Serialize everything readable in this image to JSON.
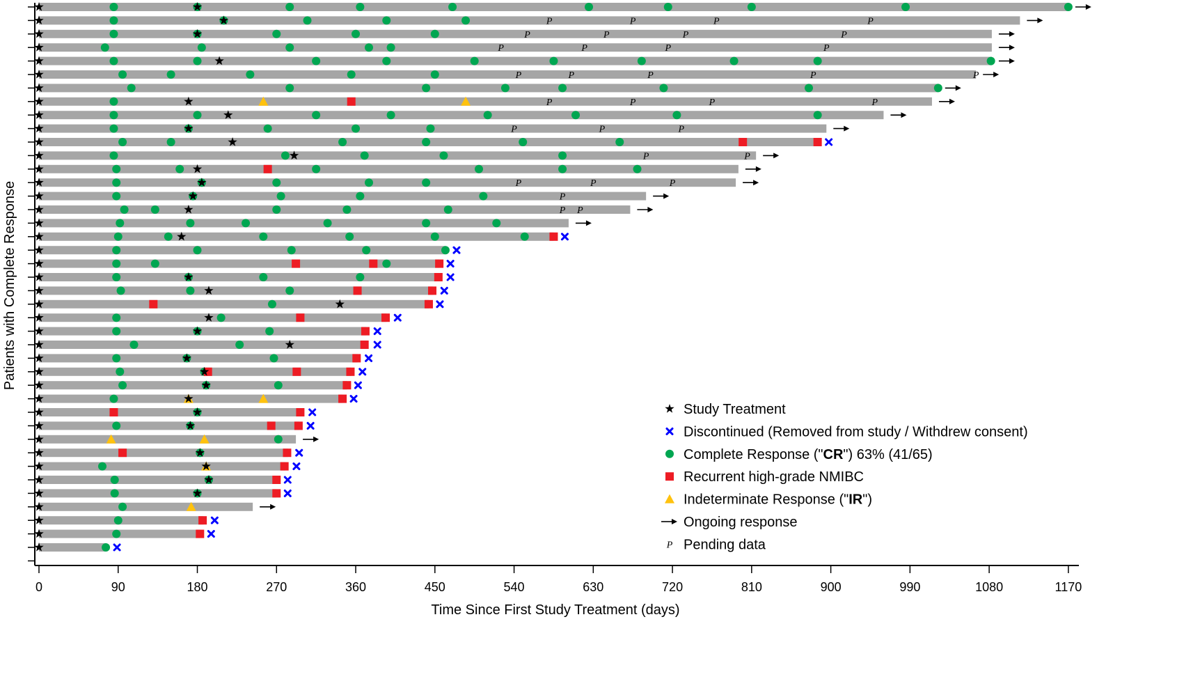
{
  "chart_data": {
    "type": "swimmer",
    "xlabel": "Time Since First Study Treatment (days)",
    "ylabel": "Patients with Complete Response",
    "xlim": [
      0,
      1185
    ],
    "xticks": [
      0,
      90,
      180,
      270,
      360,
      450,
      540,
      630,
      720,
      810,
      900,
      990,
      1080,
      1170
    ],
    "colors": {
      "bar": "#a6a6a6",
      "cr": "#00a651",
      "rec": "#ed1c24",
      "ir": "#ffc20e",
      "disc": "#0000ff",
      "treat": "#000000"
    },
    "legend": [
      {
        "key": "treat",
        "icon": "star-icon",
        "label": "Study Treatment"
      },
      {
        "key": "disc",
        "icon": "x-icon",
        "label": "Discontinued (Removed from study / Withdrew consent)"
      },
      {
        "key": "cr",
        "icon": "circle-icon",
        "label": "Complete Response (\"CR\") 63% (41/65)",
        "pre": "Complete Response (\"",
        "bold": "CR",
        "post": "\") 63% (41/65)"
      },
      {
        "key": "rec",
        "icon": "square-icon",
        "label": "Recurrent high-grade NMIBC"
      },
      {
        "key": "ir",
        "icon": "triangle-icon",
        "label": "Indeterminate Response (\"IR\")",
        "pre": "Indeterminate Response (\"",
        "bold": "IR",
        "post": "\")"
      },
      {
        "key": "arrow",
        "icon": "arrow-icon",
        "label": "Ongoing response"
      },
      {
        "key": "pend",
        "icon": "p-icon",
        "label": "Pending data",
        "symbol": "P"
      }
    ],
    "patients": [
      {
        "end": 1170,
        "cr": [
          85,
          180,
          285,
          365,
          470,
          625,
          715,
          810,
          985,
          1170
        ],
        "rec": [],
        "ir": [],
        "treat": [
          0,
          180
        ],
        "pend": [],
        "arrow": true,
        "disc": false
      },
      {
        "end": 1115,
        "cr": [
          85,
          210,
          305,
          395,
          485
        ],
        "rec": [],
        "ir": [],
        "treat": [
          0,
          210
        ],
        "pend": [
          580,
          675,
          770,
          945
        ],
        "arrow": true,
        "disc": false
      },
      {
        "end": 1083,
        "cr": [
          85,
          180,
          270,
          360,
          450
        ],
        "rec": [],
        "ir": [],
        "treat": [
          0,
          180
        ],
        "pend": [
          555,
          645,
          735,
          915
        ],
        "arrow": true,
        "disc": false
      },
      {
        "end": 1083,
        "cr": [
          75,
          185,
          285,
          375,
          400
        ],
        "rec": [],
        "ir": [],
        "treat": [
          0
        ],
        "pend": [
          525,
          620,
          715,
          895
        ],
        "arrow": true,
        "disc": false
      },
      {
        "end": 1083,
        "cr": [
          85,
          180,
          315,
          395,
          495,
          585,
          685,
          790,
          885,
          1082
        ],
        "rec": [],
        "ir": [],
        "treat": [
          0,
          205
        ],
        "pend": [],
        "arrow": true,
        "disc": false
      },
      {
        "end": 1065,
        "cr": [
          95,
          150,
          240,
          355,
          450
        ],
        "rec": [],
        "ir": [],
        "treat": [
          0
        ],
        "pend": [
          545,
          605,
          695,
          880,
          1065
        ],
        "arrow": true,
        "disc": false
      },
      {
        "end": 1022,
        "cr": [
          105,
          285,
          440,
          530,
          595,
          710,
          875,
          1022
        ],
        "rec": [],
        "ir": [],
        "treat": [
          0
        ],
        "pend": [],
        "arrow": true,
        "disc": false
      },
      {
        "end": 1015,
        "cr": [
          85
        ],
        "rec": [
          355
        ],
        "ir": [
          255,
          485
        ],
        "treat": [
          0,
          170
        ],
        "pend": [
          580,
          675,
          765,
          950
        ],
        "arrow": true,
        "disc": false
      },
      {
        "end": 960,
        "cr": [
          85,
          180,
          315,
          400,
          510,
          610,
          725,
          885
        ],
        "rec": [],
        "ir": [],
        "treat": [
          0,
          215
        ],
        "pend": [],
        "arrow": true,
        "disc": false
      },
      {
        "end": 895,
        "cr": [
          85,
          170,
          260,
          360,
          445
        ],
        "rec": [],
        "ir": [],
        "treat": [
          0,
          170
        ],
        "pend": [
          540,
          640,
          730
        ],
        "arrow": true,
        "disc": false
      },
      {
        "end": 885,
        "cr": [
          95,
          150,
          345,
          440,
          550,
          660
        ],
        "rec": [
          800,
          885
        ],
        "ir": [],
        "treat": [
          0,
          220
        ],
        "pend": [],
        "arrow": false,
        "disc": true
      },
      {
        "end": 815,
        "cr": [
          85,
          280,
          370,
          460,
          595
        ],
        "rec": [],
        "ir": [],
        "treat": [
          0,
          290
        ],
        "pend": [
          690,
          805
        ],
        "arrow": true,
        "disc": false
      },
      {
        "end": 795,
        "cr": [
          88,
          160,
          315,
          500,
          595,
          680
        ],
        "rec": [
          260
        ],
        "ir": [],
        "treat": [
          0,
          180
        ],
        "pend": [],
        "arrow": true,
        "disc": false
      },
      {
        "end": 792,
        "cr": [
          88,
          185,
          270,
          375,
          440
        ],
        "rec": [],
        "ir": [],
        "treat": [
          0,
          185
        ],
        "pend": [
          545,
          630,
          720
        ],
        "arrow": true,
        "disc": false
      },
      {
        "end": 690,
        "cr": [
          88,
          175,
          275,
          365,
          505
        ],
        "rec": [],
        "ir": [],
        "treat": [
          0,
          175
        ],
        "pend": [
          595
        ],
        "arrow": true,
        "disc": false
      },
      {
        "end": 672,
        "cr": [
          97,
          132,
          270,
          350,
          465
        ],
        "rec": [],
        "ir": [],
        "treat": [
          0,
          170
        ],
        "pend": [
          595,
          615
        ],
        "arrow": true,
        "disc": false
      },
      {
        "end": 602,
        "cr": [
          92,
          172,
          235,
          328,
          440,
          520
        ],
        "rec": [],
        "ir": [],
        "treat": [
          0
        ],
        "pend": [],
        "arrow": true,
        "disc": false
      },
      {
        "end": 585,
        "cr": [
          90,
          147,
          255,
          353,
          450,
          552
        ],
        "rec": [
          585
        ],
        "ir": [],
        "treat": [
          0,
          162
        ],
        "pend": [],
        "arrow": false,
        "disc": true
      },
      {
        "end": 462,
        "cr": [
          88,
          180,
          287,
          372,
          462
        ],
        "rec": [],
        "ir": [],
        "treat": [
          0
        ],
        "pend": [],
        "arrow": false,
        "disc": true
      },
      {
        "end": 455,
        "cr": [
          88,
          132,
          395
        ],
        "rec": [
          292,
          380,
          455
        ],
        "ir": [],
        "treat": [
          0
        ],
        "pend": [],
        "arrow": false,
        "disc": true
      },
      {
        "end": 455,
        "cr": [
          88,
          170,
          255,
          365
        ],
        "rec": [
          454
        ],
        "ir": [],
        "treat": [
          0,
          170
        ],
        "pend": [],
        "arrow": false,
        "disc": true
      },
      {
        "end": 448,
        "cr": [
          93,
          172,
          285
        ],
        "rec": [
          362,
          447
        ],
        "ir": [],
        "treat": [
          0,
          193
        ],
        "pend": [],
        "arrow": false,
        "disc": true
      },
      {
        "end": 443,
        "cr": [
          265
        ],
        "rec": [
          130,
          443
        ],
        "ir": [],
        "treat": [
          0,
          342
        ],
        "pend": [],
        "arrow": false,
        "disc": true
      },
      {
        "end": 395,
        "cr": [
          88,
          207
        ],
        "rec": [
          297,
          394
        ],
        "ir": [],
        "treat": [
          0,
          193
        ],
        "pend": [],
        "arrow": false,
        "disc": true
      },
      {
        "end": 372,
        "cr": [
          88,
          180,
          262
        ],
        "rec": [
          371
        ],
        "ir": [],
        "treat": [
          0,
          180
        ],
        "pend": [],
        "arrow": false,
        "disc": true
      },
      {
        "end": 372,
        "cr": [
          108,
          228
        ],
        "rec": [
          370
        ],
        "ir": [],
        "treat": [
          0,
          285
        ],
        "pend": [],
        "arrow": false,
        "disc": true
      },
      {
        "end": 362,
        "cr": [
          88,
          168,
          267
        ],
        "rec": [
          361
        ],
        "ir": [],
        "treat": [
          0,
          168
        ],
        "pend": [],
        "arrow": false,
        "disc": true
      },
      {
        "end": 355,
        "cr": [
          92,
          188
        ],
        "rec": [
          192,
          293,
          354
        ],
        "ir": [],
        "treat": [
          0,
          188
        ],
        "pend": [],
        "arrow": false,
        "disc": true
      },
      {
        "end": 350,
        "cr": [
          95,
          190,
          272
        ],
        "rec": [
          350
        ],
        "ir": [],
        "treat": [
          0,
          190
        ],
        "pend": [],
        "arrow": false,
        "disc": true
      },
      {
        "end": 345,
        "cr": [
          85
        ],
        "rec": [
          345
        ],
        "ir": [
          170,
          255
        ],
        "treat": [
          0,
          170
        ],
        "pend": [],
        "arrow": false,
        "disc": true
      },
      {
        "end": 298,
        "cr": [
          180
        ],
        "rec": [
          85,
          297
        ],
        "ir": [],
        "treat": [
          0,
          180
        ],
        "pend": [],
        "arrow": false,
        "disc": true
      },
      {
        "end": 296,
        "cr": [
          88,
          172
        ],
        "rec": [
          264,
          295
        ],
        "ir": [],
        "treat": [
          0,
          172
        ],
        "pend": [],
        "arrow": false,
        "disc": true
      },
      {
        "end": 292,
        "cr": [
          272
        ],
        "rec": [],
        "ir": [
          82,
          188
        ],
        "treat": [
          0
        ],
        "pend": [],
        "arrow": true,
        "disc": false
      },
      {
        "end": 283,
        "cr": [
          183
        ],
        "rec": [
          95,
          282
        ],
        "ir": [],
        "treat": [
          0,
          183
        ],
        "pend": [],
        "arrow": false,
        "disc": true
      },
      {
        "end": 280,
        "cr": [
          72
        ],
        "rec": [
          279
        ],
        "ir": [
          190
        ],
        "treat": [
          0,
          190
        ],
        "pend": [],
        "arrow": false,
        "disc": true
      },
      {
        "end": 270,
        "cr": [
          86,
          193
        ],
        "rec": [
          270
        ],
        "ir": [],
        "treat": [
          0,
          193
        ],
        "pend": [],
        "arrow": false,
        "disc": true
      },
      {
        "end": 270,
        "cr": [
          86,
          180
        ],
        "rec": [
          270
        ],
        "ir": [],
        "treat": [
          0,
          180
        ],
        "pend": [],
        "arrow": false,
        "disc": true
      },
      {
        "end": 243,
        "cr": [
          95
        ],
        "rec": [],
        "ir": [
          173
        ],
        "treat": [
          0
        ],
        "pend": [],
        "arrow": true,
        "disc": false
      },
      {
        "end": 187,
        "cr": [
          90
        ],
        "rec": [
          186
        ],
        "ir": [],
        "treat": [
          0
        ],
        "pend": [],
        "arrow": false,
        "disc": true
      },
      {
        "end": 183,
        "cr": [
          88
        ],
        "rec": [
          183
        ],
        "ir": [],
        "treat": [
          0
        ],
        "pend": [],
        "arrow": false,
        "disc": true
      },
      {
        "end": 76,
        "cr": [
          76
        ],
        "rec": [],
        "ir": [],
        "treat": [
          0
        ],
        "pend": [],
        "arrow": false,
        "disc": true
      }
    ]
  }
}
